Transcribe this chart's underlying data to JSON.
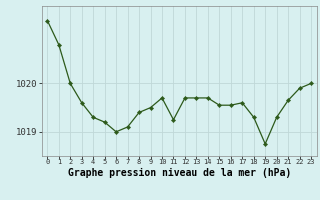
{
  "x": [
    0,
    1,
    2,
    3,
    4,
    5,
    6,
    7,
    8,
    9,
    10,
    11,
    12,
    13,
    14,
    15,
    16,
    17,
    18,
    19,
    20,
    21,
    22,
    23
  ],
  "y": [
    1021.3,
    1020.8,
    1020.0,
    1019.6,
    1019.3,
    1019.2,
    1019.0,
    1019.1,
    1019.4,
    1019.5,
    1019.7,
    1019.25,
    1019.7,
    1019.7,
    1019.7,
    1019.55,
    1019.55,
    1019.6,
    1019.3,
    1018.75,
    1019.3,
    1019.65,
    1019.9,
    1020.0
  ],
  "line_color": "#2d5a1b",
  "marker_color": "#2d5a1b",
  "bg_color": "#d8f0f0",
  "grid_color": "#c0d8d8",
  "xlabel": "Graphe pression niveau de la mer (hPa)",
  "xlabel_fontsize": 7,
  "ytick_labels": [
    "1019",
    "1020"
  ],
  "ytick_values": [
    1019.0,
    1020.0
  ],
  "ylim": [
    1018.5,
    1021.6
  ],
  "xlim": [
    -0.5,
    23.5
  ],
  "figsize": [
    3.2,
    2.0
  ],
  "dpi": 100
}
